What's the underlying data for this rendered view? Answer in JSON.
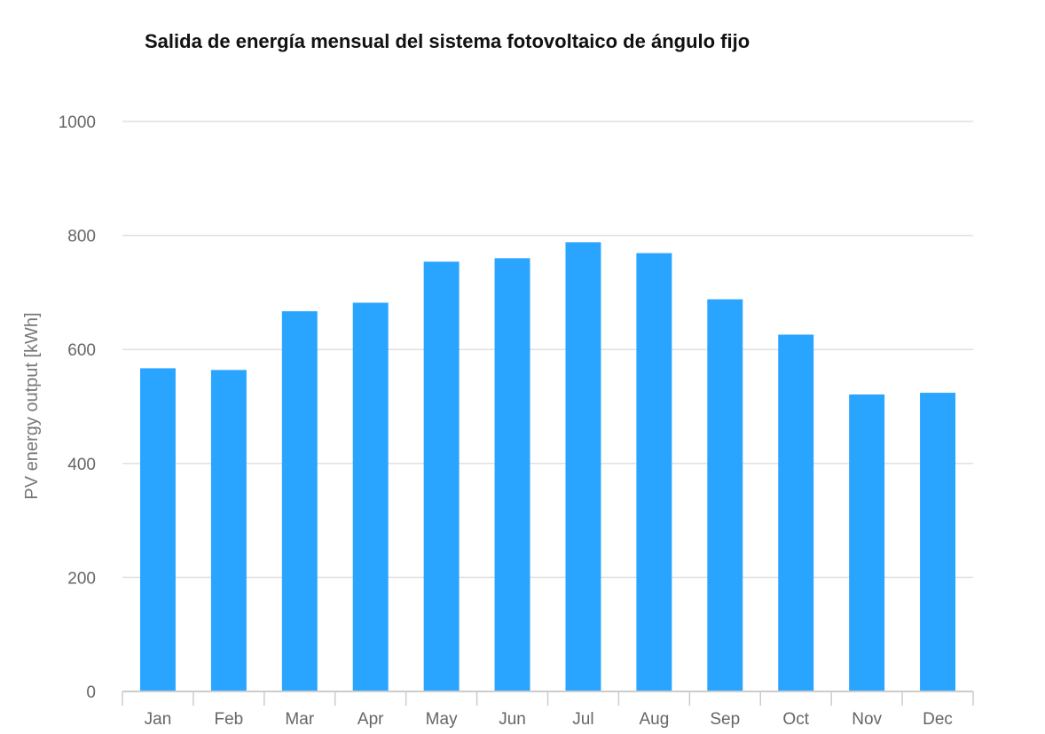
{
  "chart_data": {
    "type": "bar",
    "title": "Salida de energía mensual del sistema fotovoltaico de ángulo fijo",
    "xlabel": "",
    "ylabel": "PV energy output [kWh]",
    "categories": [
      "Jan",
      "Feb",
      "Mar",
      "Apr",
      "May",
      "Jun",
      "Jul",
      "Aug",
      "Sep",
      "Oct",
      "Nov",
      "Dec"
    ],
    "values": [
      567,
      564,
      667,
      682,
      754,
      760,
      788,
      769,
      688,
      626,
      521,
      524
    ],
    "ylim": [
      0,
      1000
    ],
    "yticks": [
      0,
      200,
      400,
      600,
      800,
      1000
    ],
    "bar_color": "#2aa5ff",
    "grid": true,
    "legend": "none"
  }
}
